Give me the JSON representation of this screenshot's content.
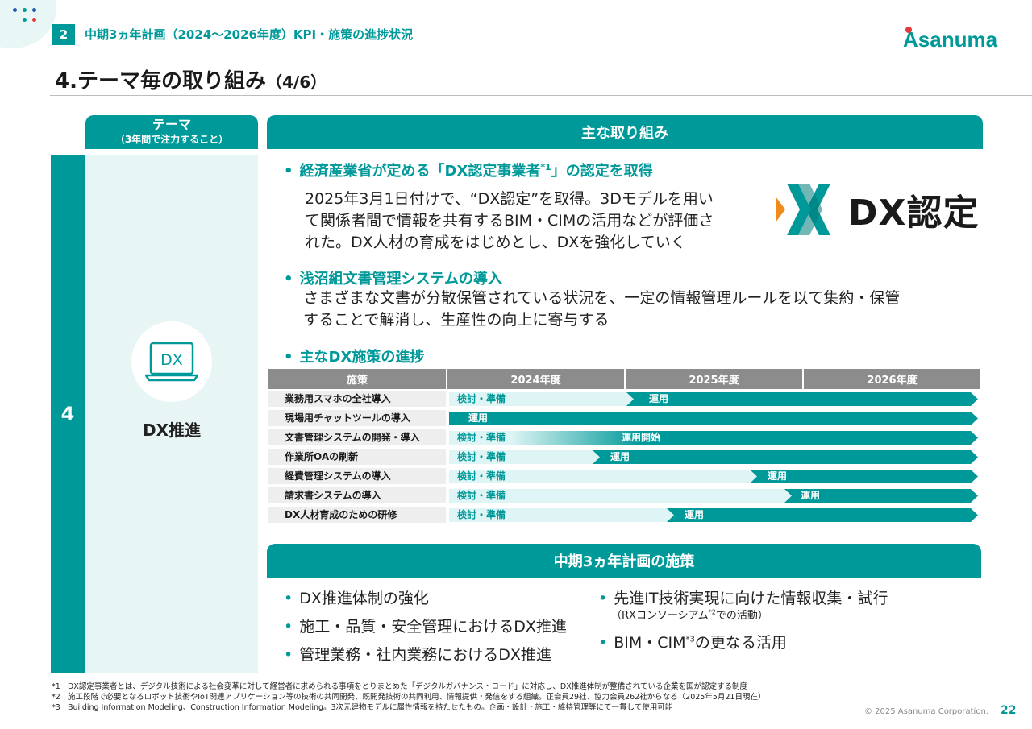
{
  "header": {
    "section_number": "2",
    "section_title": "中期3ヵ年計画（2024～2026年度）KPI・施策の進捗状況",
    "page_title": "4.テーマ毎の取り組み",
    "page_title_sub": "（4/6）",
    "logo_text": "Asanuma"
  },
  "left": {
    "theme_header": "テーマ",
    "theme_header_sub": "（3年間で注力すること）",
    "theme_number": "4",
    "icon_text": "DX",
    "theme_label": "DX推進"
  },
  "main": {
    "header": "主な取り組み",
    "item1": {
      "bullet": "•",
      "title": "経済産業省が定める「DX認定事業者",
      "title_sup": "*1",
      "title_end": "」の認定を取得",
      "lines": [
        "2025年3月1日付けで、“DX認定”を取得。3Dモデルを用い",
        "て関係者間で情報を共有するBIM・CIMの活用などが評価さ",
        "れた。DX人材の育成をはじめとし、DXを強化していく"
      ]
    },
    "dx_logo_text": "DX認定",
    "item2": {
      "bullet": "•",
      "title": "浅沼組文書管理システムの導入",
      "lines": [
        "さまざまな文書が分散保管されている状況を、一定の情報管理ルールを以て集約・保管",
        "することで解消し、生産性の向上に寄与する"
      ]
    },
    "item3": {
      "bullet": "•",
      "title": "主なDX施策の進捗"
    }
  },
  "table": {
    "headers": [
      "施策",
      "2024年度",
      "2025年度",
      "2026年度"
    ],
    "rows": [
      {
        "label": "業務用スマホの全社導入",
        "prep": "検討・準備",
        "run": "運用"
      },
      {
        "label": "現場用チャットツールの導入",
        "prep": "",
        "run": "運用"
      },
      {
        "label": "文書管理システムの開発・導入",
        "prep": "検討・準備",
        "run": "運用開始"
      },
      {
        "label": "作業所OAの刷新",
        "prep": "検討・準備",
        "run": "運用"
      },
      {
        "label": "経費管理システムの導入",
        "prep": "検討・準備",
        "run": "運用"
      },
      {
        "label": "請求書システムの導入",
        "prep": "検討・準備",
        "run": "運用"
      },
      {
        "label": "DX人材育成のための研修",
        "prep": "検討・準備",
        "run": "運用"
      }
    ]
  },
  "plan": {
    "header": "中期3ヵ年計画の施策",
    "bullet": "•",
    "left_items": [
      "DX推進体制の強化",
      "施工・品質・安全管理におけるDX推進",
      "管理業務・社内業務におけるDX推進"
    ],
    "right_item1": "先進IT技術実現に向けた情報収集・試行",
    "right_item1_sub_a": "（RXコンソーシアム",
    "right_item1_sub_sup": "*2",
    "right_item1_sub_b": "での活動）",
    "right_item2_a": "BIM・CIM",
    "right_item2_sup": "*3",
    "right_item2_b": "の更なる活用"
  },
  "footnotes": [
    {
      "key": "*1",
      "text": "DX認定事業者とは、デジタル技術による社会変革に対して経営者に求められる事項をとりまとめた「デジタルガバナンス・コード」に対応し、DX推進体制が整備されている企業を国が認定する制度"
    },
    {
      "key": "*2",
      "text": "施工段階で必要となるロボット技術やIoT関連アプリケーション等の技術の共同開発、既開発技術の共同利用、情報提供・発信をする組織。正会員29社、協力会員262社からなる（2025年5月21日現在）"
    },
    {
      "key": "*3",
      "text": "Building Information Modeling、Construction Information Modeling。3次元建物モデルに属性情報を持たせたもの。企画・設計・施工・維持管理等にて一貫して使用可能"
    }
  ],
  "footer": {
    "copyright": "© 2025 Asanuma Corporation.",
    "page_number": "22"
  },
  "colors": {
    "accent": "#009999",
    "light_accent": "#dff5f5",
    "theme_bg": "#e8f5f5",
    "table_header": "#8c8c8c",
    "dx_orange": "#f08a1c"
  }
}
